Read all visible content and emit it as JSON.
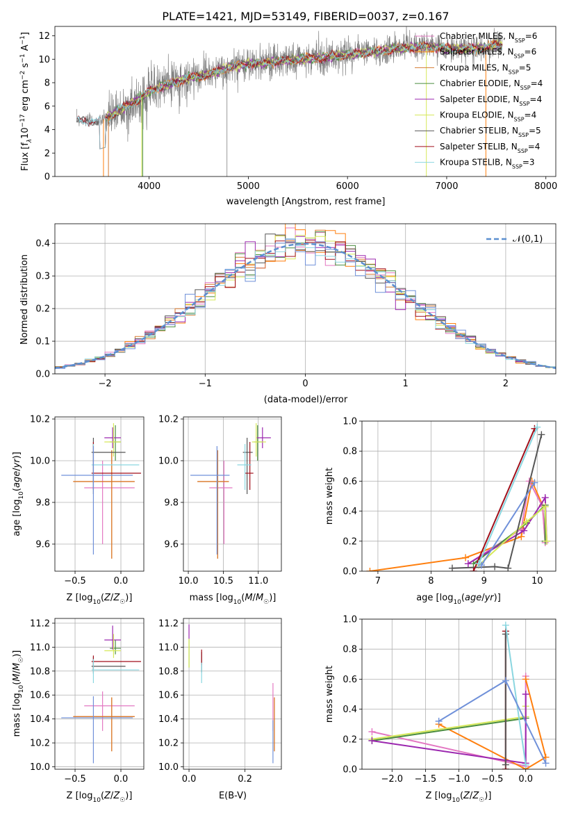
{
  "colors": {
    "ChM": "#e377c2",
    "SaM": "#ff7f0e",
    "KrM": "#d5792f",
    "ChE": "#4a8c3f",
    "SaE": "#9b27af",
    "KrE": "#d6e85a",
    "ChS": "#555555",
    "SaS": "#a10f1a",
    "KrS": "#8ad6e0",
    "blue": "#6f90d9",
    "gray": "#808080"
  },
  "chart_data": [
    {
      "id": "spectrum",
      "type": "line",
      "title": "PLATE=1421, MJD=53149, FIBERID=0037, z=0.167",
      "xlabel": "wavelength [Angstrom, rest frame]",
      "ylabel": "Flux [f_λ10^-17 erg cm^-2 s^-1 A^-1]",
      "xlim": [
        3050,
        8100
      ],
      "ylim": [
        0,
        12.8
      ],
      "xticks": [
        4000,
        5000,
        6000,
        7000,
        8000
      ],
      "yticks": [
        0,
        2,
        4,
        6,
        8,
        10,
        12
      ],
      "legend_position": "right",
      "legend": [
        {
          "label": "Chabrier MILES, N",
          "sub": "SSP",
          "val": "=6",
          "color": "ChM"
        },
        {
          "label": "Salpeter MILES, N",
          "sub": "SSP",
          "val": "=6",
          "color": "SaM"
        },
        {
          "label": "Kroupa MILES, N",
          "sub": "SSP",
          "val": "=5",
          "color": "KrM"
        },
        {
          "label": "Chabrier ELODIE, N",
          "sub": "SSP",
          "val": "=4",
          "color": "ChE"
        },
        {
          "label": "Salpeter ELODIE, N",
          "sub": "SSP",
          "val": "=4",
          "color": "SaE"
        },
        {
          "label": "Kroupa ELODIE, N",
          "sub": "SSP",
          "val": "=4",
          "color": "KrE"
        },
        {
          "label": "Chabrier STELIB, N",
          "sub": "SSP",
          "val": "=5",
          "color": "ChS"
        },
        {
          "label": "Salpeter STELIB, N",
          "sub": "SSP",
          "val": "=4",
          "color": "SaS"
        },
        {
          "label": "Kroupa STELIB, N",
          "sub": "SSP",
          "val": "=3",
          "color": "KrS"
        }
      ],
      "continuum": [
        [
          3270,
          4.8
        ],
        [
          3500,
          4.7
        ],
        [
          3700,
          5.6
        ],
        [
          3900,
          6.6
        ],
        [
          4000,
          7.3
        ],
        [
          4200,
          7.9
        ],
        [
          4400,
          8.4
        ],
        [
          4600,
          8.7
        ],
        [
          4800,
          9.3
        ],
        [
          5000,
          9.6
        ],
        [
          5200,
          9.7
        ],
        [
          5500,
          10.0
        ],
        [
          5800,
          10.2
        ],
        [
          6000,
          10.4
        ],
        [
          6200,
          10.6
        ],
        [
          6500,
          10.9
        ],
        [
          6800,
          11.1
        ],
        [
          7000,
          10.9
        ],
        [
          7200,
          10.9
        ],
        [
          7400,
          11.0
        ],
        [
          7500,
          11.2
        ]
      ],
      "data_end": 7560,
      "model_dips": [
        [
          3540,
          0
        ],
        [
          3590,
          0
        ],
        [
          3920,
          0
        ],
        [
          3940,
          0
        ],
        [
          6790,
          0
        ],
        [
          7390,
          0
        ]
      ]
    },
    {
      "id": "residuals",
      "type": "area",
      "xlabel": "(data-model)/error",
      "ylabel": "Normed distribution",
      "xlim": [
        -2.5,
        2.5
      ],
      "ylim": [
        0,
        0.46
      ],
      "xticks": [
        -2,
        -1,
        0,
        1,
        2
      ],
      "yticks": [
        0,
        0.1,
        0.2,
        0.3,
        0.4
      ],
      "legend_position": "upper right",
      "legend_label": "𝒩(0,1)",
      "bin_width": 0.1
    },
    {
      "id": "age_vs_Z",
      "type": "scatter",
      "xlabel": "Z [log₁₀(Z/Z☉)]",
      "ylabel": "age  [log₁₀(age/yr)]",
      "xlim": [
        -0.72,
        0.25
      ],
      "ylim": [
        9.47,
        10.21
      ],
      "xticks": [
        -0.5,
        0.0
      ],
      "yticks": [
        9.6,
        9.8,
        10.0,
        10.2
      ]
    },
    {
      "id": "age_vs_mass",
      "type": "scatter",
      "xlabel": "mass [log₁₀(M/M☉)]",
      "xlim": [
        9.93,
        11.33
      ],
      "ylim": [
        9.47,
        10.21
      ],
      "xticks": [
        10.0,
        10.5,
        11.0
      ],
      "yticks": [
        9.6,
        9.8,
        10.0,
        10.2
      ]
    },
    {
      "id": "mw_vs_age",
      "type": "line",
      "xlabel": "age  [log₁₀(age/yr)]",
      "ylabel": "mass weight",
      "xlim": [
        6.7,
        10.35
      ],
      "ylim": [
        0,
        1.0
      ],
      "xticks": [
        7,
        8,
        9,
        10
      ],
      "yticks": [
        0,
        0.2,
        0.4,
        0.6,
        0.8,
        1.0
      ]
    },
    {
      "id": "mass_vs_Z",
      "type": "scatter",
      "xlabel": "Z [log₁₀(Z/Z☉)]",
      "ylabel": "mass [log₁₀(M/M☉)]",
      "xlim": [
        -0.72,
        0.25
      ],
      "ylim": [
        9.98,
        11.24
      ],
      "xticks": [
        -0.5,
        0.0
      ],
      "yticks": [
        10.0,
        10.2,
        10.4,
        10.6,
        10.8,
        11.0,
        11.2
      ]
    },
    {
      "id": "mass_vs_ebv",
      "type": "scatter",
      "xlabel": "E(B-V)",
      "xlim": [
        -0.02,
        0.33
      ],
      "ylim": [
        9.98,
        11.24
      ],
      "xticks": [
        0.0,
        0.2
      ],
      "yticks": [
        10.0,
        10.2,
        10.4,
        10.6,
        10.8,
        11.0,
        11.2
      ]
    },
    {
      "id": "mw_vs_Z",
      "type": "line",
      "xlabel": "Z [log₁₀(Z/Z☉)]",
      "ylabel": "mass weight",
      "xlim": [
        -2.45,
        0.45
      ],
      "ylim": [
        0,
        1.0
      ],
      "xticks": [
        -2.0,
        -1.5,
        -1.0,
        -0.5,
        0.0
      ],
      "yticks": [
        0,
        0.2,
        0.4,
        0.6,
        0.8,
        1.0
      ]
    }
  ],
  "fits": [
    {
      "c": "ChM",
      "Z": -0.2,
      "Zerr": [
        -0.4,
        0.15
      ],
      "age": 9.87,
      "ageErr": [
        9.6,
        10.0
      ],
      "mass": 10.51,
      "massErr": [
        10.3,
        10.63
      ],
      "ebv": 0.3,
      "ebvErr": [
        10.3,
        10.7
      ]
    },
    {
      "c": "SaM",
      "Z": -0.1,
      "Zerr": [
        -0.52,
        0.15
      ],
      "age": 9.9,
      "ageErr": [
        9.53,
        10.05
      ],
      "mass": 10.42,
      "massErr": [
        10.13,
        10.58
      ],
      "ebv": 0.305,
      "ebvErr": [
        10.13,
        10.58
      ]
    },
    {
      "c": "KrM",
      "Z": -0.1,
      "Zerr": [
        -0.52,
        0.15
      ],
      "age": 9.9,
      "ageErr": [
        9.53,
        10.05
      ],
      "mass": 10.42,
      "massErr": [
        10.13,
        10.58
      ],
      "ebv": 0.305,
      "ebvErr": [
        10.13,
        10.58
      ]
    },
    {
      "c": "ChE",
      "Z": -0.06,
      "Zerr": [
        -0.12,
        0.0
      ],
      "age": 10.09,
      "ageErr": [
        10.0,
        10.17
      ],
      "mass": 10.99,
      "massErr": [
        10.94,
        11.06
      ],
      "ebv": 0.0,
      "ebvErr": [
        10.83,
        11.07
      ]
    },
    {
      "c": "SaE",
      "Z": -0.09,
      "Zerr": [
        -0.18,
        0.0
      ],
      "age": 10.11,
      "ageErr": [
        10.06,
        10.16
      ],
      "mass": 11.06,
      "massErr": [
        10.98,
        11.18
      ],
      "ebv": 0.0,
      "ebvErr": [
        11.07,
        11.19
      ]
    },
    {
      "c": "KrE",
      "Z": -0.08,
      "Zerr": [
        -0.18,
        0.0
      ],
      "age": 10.09,
      "ageErr": [
        10.02,
        10.18
      ],
      "mass": 10.97,
      "massErr": [
        10.91,
        11.11
      ],
      "ebv": 0.0,
      "ebvErr": [
        10.83,
        11.07
      ]
    },
    {
      "c": "ChS",
      "Z": -0.3,
      "Zerr": [
        -0.32,
        0.05
      ],
      "age": 10.04,
      "ageErr": [
        9.84,
        10.11
      ],
      "mass": 10.84,
      "massErr": [
        10.78,
        10.92
      ],
      "ebv": 0.045,
      "ebvErr": [
        10.79,
        10.96
      ]
    },
    {
      "c": "SaS",
      "Z": -0.3,
      "Zerr": [
        -0.32,
        0.22
      ],
      "age": 9.94,
      "ageErr": [
        9.86,
        10.09
      ],
      "mass": 10.88,
      "massErr": [
        10.81,
        10.93
      ],
      "ebv": 0.045,
      "ebvErr": [
        10.85,
        10.98
      ]
    },
    {
      "c": "KrS",
      "Z": -0.3,
      "Zerr": [
        -0.32,
        0.2
      ],
      "age": 9.98,
      "ageErr": [
        9.86,
        10.08
      ],
      "mass": 10.81,
      "massErr": [
        10.7,
        10.9
      ],
      "ebv": 0.045,
      "ebvErr": [
        10.7,
        10.87
      ]
    },
    {
      "c": "blue",
      "Z": -0.3,
      "Zerr": [
        -0.65,
        0.13
      ],
      "age": 9.93,
      "ageErr": [
        9.55,
        10.07
      ],
      "mass": 10.41,
      "massErr": [
        10.03,
        10.59
      ],
      "ebv": 0.3,
      "ebvErr": [
        10.03,
        10.39
      ]
    }
  ],
  "mw_age": [
    {
      "c": "SaM",
      "pts": [
        [
          6.85,
          0.0
        ],
        [
          8.65,
          0.09
        ],
        [
          9.7,
          0.23
        ],
        [
          9.9,
          0.6
        ],
        [
          10.1,
          0.44
        ],
        [
          10.15,
          0.2
        ]
      ]
    },
    {
      "c": "ChM",
      "pts": [
        [
          8.7,
          0.05
        ],
        [
          9.7,
          0.28
        ],
        [
          9.85,
          0.6
        ],
        [
          10.1,
          0.43
        ],
        [
          10.15,
          0.19
        ]
      ]
    },
    {
      "c": "ChE",
      "pts": [
        [
          8.8,
          0.05
        ],
        [
          9.8,
          0.32
        ],
        [
          10.15,
          0.44
        ],
        [
          10.15,
          0.2
        ]
      ]
    },
    {
      "c": "SaE",
      "pts": [
        [
          8.7,
          0.05
        ],
        [
          9.75,
          0.27
        ],
        [
          10.15,
          0.49
        ],
        [
          10.18,
          0.2
        ]
      ]
    },
    {
      "c": "KrE",
      "pts": [
        [
          8.9,
          0.04
        ],
        [
          9.8,
          0.33
        ],
        [
          10.15,
          0.43
        ],
        [
          10.18,
          0.2
        ]
      ]
    },
    {
      "c": "ChS",
      "pts": [
        [
          8.4,
          0.02
        ],
        [
          9.2,
          0.03
        ],
        [
          9.45,
          0.02
        ],
        [
          10.08,
          0.91
        ]
      ]
    },
    {
      "c": "SaS",
      "pts": [
        [
          8.8,
          0.0
        ],
        [
          9.95,
          0.95
        ]
      ]
    },
    {
      "c": "KrS",
      "pts": [
        [
          8.9,
          0.05
        ],
        [
          10.0,
          0.96
        ]
      ]
    },
    {
      "c": "blue",
      "pts": [
        [
          8.95,
          0.04
        ],
        [
          9.95,
          0.59
        ]
      ]
    }
  ],
  "mw_Z": [
    {
      "c": "ChM",
      "pts": [
        [
          -2.3,
          0.25
        ],
        [
          0.0,
          0.02
        ],
        [
          0.0,
          0.62
        ]
      ]
    },
    {
      "c": "SaM",
      "pts": [
        [
          -1.3,
          0.3
        ],
        [
          0.0,
          0.0
        ],
        [
          0.3,
          0.08
        ],
        [
          0.0,
          0.6
        ]
      ]
    },
    {
      "c": "KrE",
      "pts": [
        [
          -2.3,
          0.2
        ],
        [
          0.0,
          0.35
        ],
        [
          0.0,
          0.42
        ]
      ]
    },
    {
      "c": "ChE",
      "pts": [
        [
          -2.3,
          0.19
        ],
        [
          0.0,
          0.34
        ]
      ]
    },
    {
      "c": "SaE",
      "pts": [
        [
          -2.3,
          0.19
        ],
        [
          0.0,
          0.04
        ],
        [
          0.0,
          0.5
        ]
      ]
    },
    {
      "c": "SaS",
      "pts": [
        [
          -0.3,
          0.0
        ],
        [
          -0.3,
          0.92
        ]
      ]
    },
    {
      "c": "ChS",
      "pts": [
        [
          -0.3,
          0.03
        ],
        [
          -0.3,
          0.9
        ]
      ]
    },
    {
      "c": "KrS",
      "pts": [
        [
          0.0,
          0.03
        ],
        [
          -0.3,
          0.96
        ]
      ]
    },
    {
      "c": "blue",
      "pts": [
        [
          -1.3,
          0.32
        ],
        [
          -0.3,
          0.59
        ],
        [
          0.3,
          0.04
        ]
      ]
    }
  ]
}
